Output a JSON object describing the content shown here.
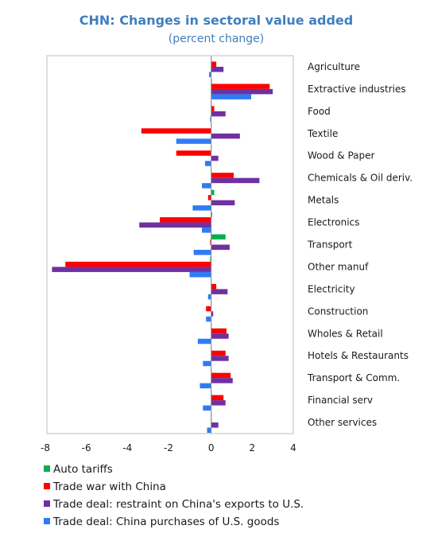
{
  "chart_data": {
    "type": "bar",
    "orientation": "horizontal",
    "title": "CHN: Changes in sectoral value added",
    "subtitle": "(percent change)",
    "xlim": [
      -8,
      4
    ],
    "xticks": [
      "-8",
      "-6",
      "-4",
      "-2",
      "0",
      "2",
      "4"
    ],
    "xtick_values": [
      -8,
      -6,
      -4,
      -2,
      0,
      2,
      4
    ],
    "grid": false,
    "legend_position": "bottom-left",
    "categories": [
      "Agriculture",
      "Extractive industries",
      "Food",
      "Textile",
      "Wood & Paper",
      "Chemicals & Oil deriv.",
      "Metals",
      "Electronics",
      "Transport",
      "Other manuf",
      "Electricity",
      "Construction",
      "Wholes & Retail",
      "Hotels & Restaurants",
      "Transport & Comm.",
      "Financial serv",
      "Other services"
    ],
    "series": [
      {
        "name": "Auto tariffs",
        "color": "#00b050",
        "values": [
          0.02,
          0.03,
          0.01,
          0.01,
          0.0,
          0.02,
          0.15,
          0.05,
          0.7,
          -0.05,
          0.02,
          0.02,
          0.01,
          0.0,
          0.01,
          0.0,
          0.0
        ]
      },
      {
        "name": "Trade war with China",
        "color": "#ff0000",
        "values": [
          0.25,
          2.85,
          0.15,
          -3.4,
          -1.7,
          1.1,
          -0.15,
          -2.5,
          -0.05,
          -7.1,
          0.25,
          -0.25,
          0.75,
          0.7,
          0.95,
          0.6,
          0.02
        ]
      },
      {
        "name": "Trade deal: restraint on China's exports to U.S.",
        "color": "#7030a0",
        "values": [
          0.6,
          3.0,
          0.7,
          1.4,
          0.35,
          2.35,
          1.15,
          -3.5,
          0.9,
          -7.75,
          0.8,
          0.1,
          0.85,
          0.85,
          1.05,
          0.7,
          0.35
        ]
      },
      {
        "name": "Trade deal: China purchases of U.S. goods",
        "color": "#2f7bf6",
        "values": [
          -0.1,
          1.95,
          -0.05,
          -1.7,
          -0.3,
          -0.45,
          -0.9,
          -0.45,
          -0.85,
          -1.05,
          -0.15,
          -0.25,
          -0.65,
          -0.4,
          -0.55,
          -0.4,
          -0.2
        ]
      }
    ]
  }
}
